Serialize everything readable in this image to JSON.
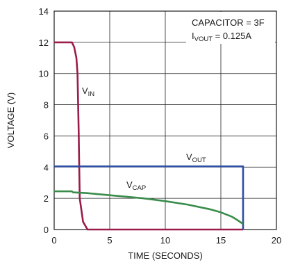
{
  "chart_data": {
    "type": "line",
    "title": "",
    "xlabel": "TIME (SECONDS)",
    "ylabel": "VOLTAGE (V)",
    "xlim": [
      0,
      20
    ],
    "ylim": [
      0,
      14
    ],
    "xticks": [
      0,
      5,
      10,
      15,
      20
    ],
    "yticks": [
      0,
      2,
      4,
      6,
      8,
      10,
      12,
      14
    ],
    "grid": true,
    "series": [
      {
        "name": "V",
        "subscript": "IN",
        "color": "#9b1b4b",
        "x": [
          0,
          1.6,
          1.8,
          2.0,
          2.1,
          2.2,
          2.3,
          2.4,
          2.6,
          3.0,
          17
        ],
        "y": [
          12,
          12,
          11.7,
          11.0,
          10.0,
          6.5,
          2.0,
          1.5,
          0.5,
          0,
          0
        ]
      },
      {
        "name": "V",
        "subscript": "OUT",
        "color": "#2e4fa3",
        "x": [
          0,
          17.0,
          17.0
        ],
        "y": [
          4.05,
          4.05,
          0
        ]
      },
      {
        "name": "V",
        "subscript": "CAP",
        "color": "#3a8c4a",
        "x": [
          0,
          1.6,
          1.7,
          3,
          5,
          8,
          10,
          12,
          14,
          15,
          16,
          16.5,
          17.0
        ],
        "y": [
          2.45,
          2.45,
          2.38,
          2.33,
          2.2,
          2.0,
          1.82,
          1.6,
          1.3,
          1.1,
          0.82,
          0.6,
          0.35
        ]
      }
    ],
    "annotations": {
      "capacitor": "CAPACITOR = 3F",
      "ivout_main": "I",
      "ivout_sub": "VOUT",
      "ivout_value": " = 0.125A"
    }
  }
}
